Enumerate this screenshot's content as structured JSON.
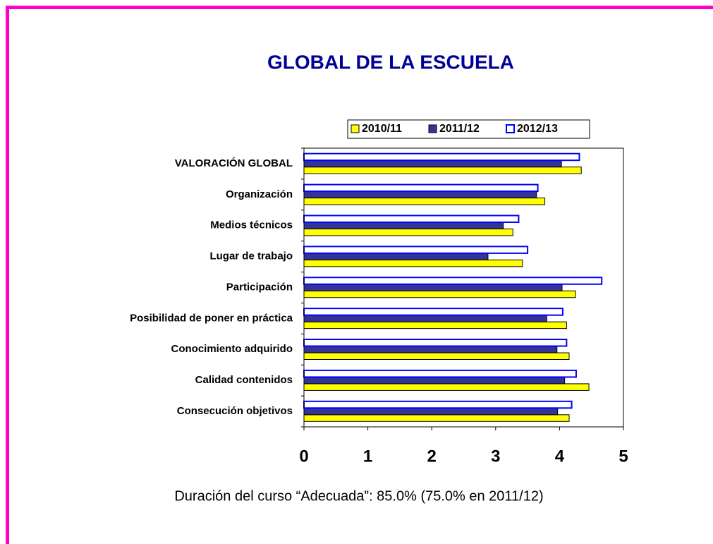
{
  "chart_data": {
    "type": "hbar",
    "title": "GLOBAL DE LA ESCUELA",
    "categories": [
      "VALORACIÓN GLOBAL",
      "Organización",
      "Medios técnicos",
      "Lugar de trabajo",
      "Participación",
      "Posibilidad de poner en práctica",
      "Conocimiento adquirido",
      "Calidad contenidos",
      "Consecución objetivos"
    ],
    "series": [
      {
        "name": "2010/11",
        "color": "#ffff00",
        "edgecolor": "#000000",
        "values": [
          4.34,
          3.77,
          3.27,
          3.42,
          4.25,
          4.11,
          4.15,
          4.46,
          4.15
        ]
      },
      {
        "name": "2011/12",
        "color": "#333399",
        "edgecolor": "#000000",
        "values": [
          4.03,
          3.64,
          3.12,
          2.88,
          4.04,
          3.8,
          3.96,
          4.08,
          3.97
        ]
      },
      {
        "name": "2012/13",
        "color": "#ffffff",
        "edgecolor": "#0000ff",
        "values": [
          4.31,
          3.66,
          3.36,
          3.5,
          4.66,
          4.05,
          4.11,
          4.26,
          4.19
        ]
      }
    ],
    "xlim": [
      0,
      5
    ],
    "xticks": [
      0,
      1,
      2,
      3,
      4,
      5
    ],
    "legend": "top",
    "annotation": "Duración del curso “Adecuada”: 85.0% (75.0% en 2011/12)"
  }
}
